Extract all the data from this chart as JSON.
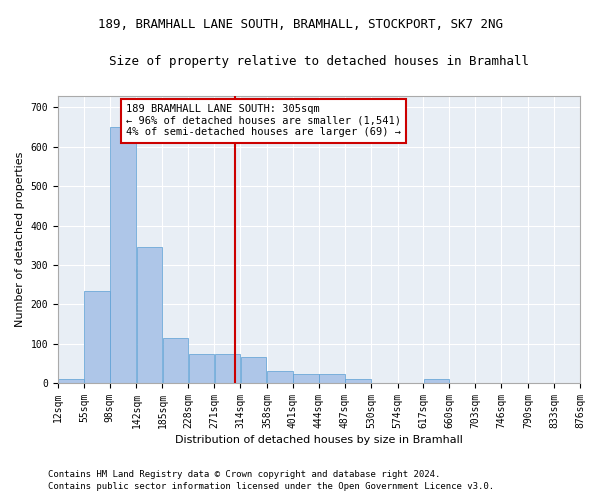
{
  "title_line1": "189, BRAMHALL LANE SOUTH, BRAMHALL, STOCKPORT, SK7 2NG",
  "title_line2": "Size of property relative to detached houses in Bramhall",
  "xlabel": "Distribution of detached houses by size in Bramhall",
  "ylabel": "Number of detached properties",
  "bar_color": "#aec6e8",
  "bar_edge_color": "#5a9fd4",
  "background_color": "#e8eef5",
  "grid_color": "#ffffff",
  "annotation_box_color": "#cc0000",
  "vline_color": "#cc0000",
  "vline_x": 305,
  "annotation_text": "189 BRAMHALL LANE SOUTH: 305sqm\n← 96% of detached houses are smaller (1,541)\n4% of semi-detached houses are larger (69) →",
  "bin_edges": [
    12,
    55,
    98,
    142,
    185,
    228,
    271,
    314,
    358,
    401,
    444,
    487,
    530,
    574,
    617,
    660,
    703,
    746,
    790,
    833,
    876
  ],
  "bar_heights": [
    10,
    234,
    650,
    345,
    115,
    73,
    73,
    65,
    30,
    22,
    22,
    10,
    0,
    0,
    10,
    0,
    0,
    0,
    0,
    0
  ],
  "ylim": [
    0,
    730
  ],
  "yticks": [
    0,
    100,
    200,
    300,
    400,
    500,
    600,
    700
  ],
  "footer_line1": "Contains HM Land Registry data © Crown copyright and database right 2024.",
  "footer_line2": "Contains public sector information licensed under the Open Government Licence v3.0.",
  "title_fontsize": 9,
  "subtitle_fontsize": 9,
  "axis_label_fontsize": 8,
  "tick_fontsize": 7,
  "annotation_fontsize": 7.5,
  "footer_fontsize": 6.5
}
